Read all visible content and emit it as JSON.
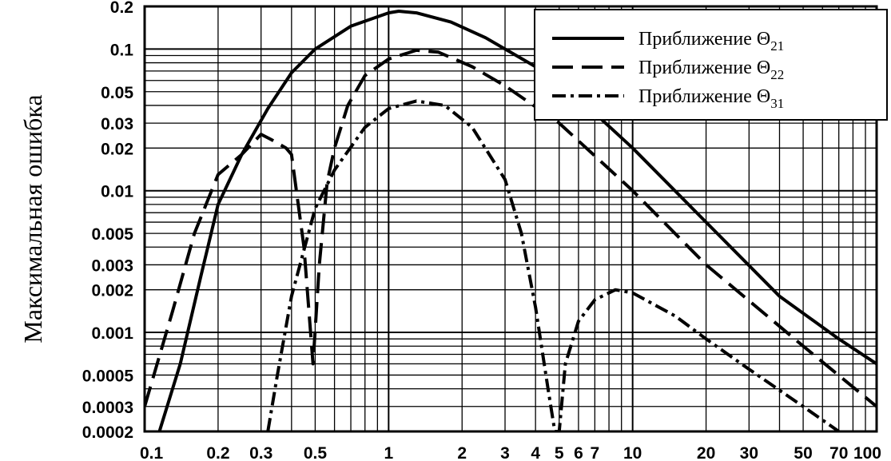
{
  "chart_data": {
    "type": "line",
    "xscale": "log",
    "yscale": "log",
    "xlim": [
      0.1,
      100
    ],
    "ylim": [
      0.0002,
      0.2
    ],
    "grid": true,
    "legend_position": "top-right",
    "xlabel": "",
    "ylabel": "Максимальная ошибка",
    "x_tick_labels": [
      {
        "value": 0.1,
        "label": "0.1"
      },
      {
        "value": 0.2,
        "label": "0.2"
      },
      {
        "value": 0.3,
        "label": "0.3"
      },
      {
        "value": 0.5,
        "label": "0.5"
      },
      {
        "value": 1,
        "label": "1"
      },
      {
        "value": 2,
        "label": "2"
      },
      {
        "value": 3,
        "label": "3"
      },
      {
        "value": 4,
        "label": "4"
      },
      {
        "value": 5,
        "label": "5"
      },
      {
        "value": 6,
        "label": "6"
      },
      {
        "value": 7,
        "label": "7"
      },
      {
        "value": 10,
        "label": "10"
      },
      {
        "value": 20,
        "label": "20"
      },
      {
        "value": 30,
        "label": "30"
      },
      {
        "value": 50,
        "label": "50"
      },
      {
        "value": 70,
        "label": "70"
      },
      {
        "value": 100,
        "label": "100"
      }
    ],
    "y_tick_labels": [
      {
        "value": 0.2,
        "label": "0.2"
      },
      {
        "value": 0.1,
        "label": "0.1"
      },
      {
        "value": 0.05,
        "label": "0.05"
      },
      {
        "value": 0.03,
        "label": "0.03"
      },
      {
        "value": 0.02,
        "label": "0.02"
      },
      {
        "value": 0.01,
        "label": "0.01"
      },
      {
        "value": 0.005,
        "label": "0.005"
      },
      {
        "value": 0.003,
        "label": "0.003"
      },
      {
        "value": 0.002,
        "label": "0.002"
      },
      {
        "value": 0.001,
        "label": "0.001"
      },
      {
        "value": 0.0005,
        "label": "0.0005"
      },
      {
        "value": 0.0003,
        "label": "0.0003"
      },
      {
        "value": 0.0002,
        "label": "0.0002"
      }
    ],
    "series": [
      {
        "name": "Приближение Θ21",
        "name_text": "Приближение Θ",
        "name_sub": "21",
        "style": "solid",
        "points": [
          [
            0.115,
            0.0002
          ],
          [
            0.14,
            0.0006
          ],
          [
            0.17,
            0.0025
          ],
          [
            0.2,
            0.008
          ],
          [
            0.25,
            0.018
          ],
          [
            0.32,
            0.038
          ],
          [
            0.4,
            0.068
          ],
          [
            0.5,
            0.1
          ],
          [
            0.7,
            0.145
          ],
          [
            1.0,
            0.18
          ],
          [
            1.1,
            0.185
          ],
          [
            1.3,
            0.18
          ],
          [
            1.8,
            0.155
          ],
          [
            2.5,
            0.12
          ],
          [
            4,
            0.075
          ],
          [
            6,
            0.045
          ],
          [
            10,
            0.02
          ],
          [
            20,
            0.006
          ],
          [
            40,
            0.0018
          ],
          [
            70,
            0.0009
          ],
          [
            100,
            0.0006
          ]
        ]
      },
      {
        "name": "Приближение Θ22",
        "name_text": "Приближение Θ",
        "name_sub": "22",
        "style": "dashed",
        "points": [
          [
            0.1,
            0.0003
          ],
          [
            0.13,
            0.0014
          ],
          [
            0.16,
            0.005
          ],
          [
            0.2,
            0.013
          ],
          [
            0.25,
            0.018
          ],
          [
            0.3,
            0.025
          ],
          [
            0.33,
            0.023
          ],
          [
            0.38,
            0.02
          ],
          [
            0.4,
            0.018
          ],
          [
            0.45,
            0.004
          ],
          [
            0.49,
            0.0006
          ],
          [
            0.52,
            0.003
          ],
          [
            0.56,
            0.0115
          ],
          [
            0.6,
            0.02
          ],
          [
            0.68,
            0.04
          ],
          [
            0.8,
            0.065
          ],
          [
            1.0,
            0.085
          ],
          [
            1.3,
            0.098
          ],
          [
            1.6,
            0.095
          ],
          [
            2.2,
            0.075
          ],
          [
            3,
            0.055
          ],
          [
            5,
            0.03
          ],
          [
            10,
            0.01
          ],
          [
            20,
            0.003
          ],
          [
            50,
            0.0008
          ],
          [
            100,
            0.0003
          ]
        ]
      },
      {
        "name": "Приближение Θ31",
        "name_text": "Приближение Θ",
        "name_sub": "31",
        "style": "dashdot",
        "points": [
          [
            0.32,
            0.0002
          ],
          [
            0.35,
            0.0005
          ],
          [
            0.4,
            0.0018
          ],
          [
            0.5,
            0.0075
          ],
          [
            0.6,
            0.014
          ],
          [
            0.8,
            0.028
          ],
          [
            1.0,
            0.038
          ],
          [
            1.3,
            0.043
          ],
          [
            1.7,
            0.04
          ],
          [
            2.2,
            0.028
          ],
          [
            3.0,
            0.012
          ],
          [
            3.5,
            0.005
          ],
          [
            4.0,
            0.0015
          ],
          [
            4.5,
            0.0004
          ],
          [
            4.8,
            0.0002
          ],
          [
            5.0,
            0.0002
          ],
          [
            5.3,
            0.0006
          ],
          [
            6,
            0.0012
          ],
          [
            7,
            0.0017
          ],
          [
            8.5,
            0.002
          ],
          [
            10,
            0.0019
          ],
          [
            15,
            0.0013
          ],
          [
            20,
            0.0009
          ],
          [
            30,
            0.00055
          ],
          [
            50,
            0.0003
          ],
          [
            70,
            0.0002
          ]
        ]
      }
    ]
  }
}
